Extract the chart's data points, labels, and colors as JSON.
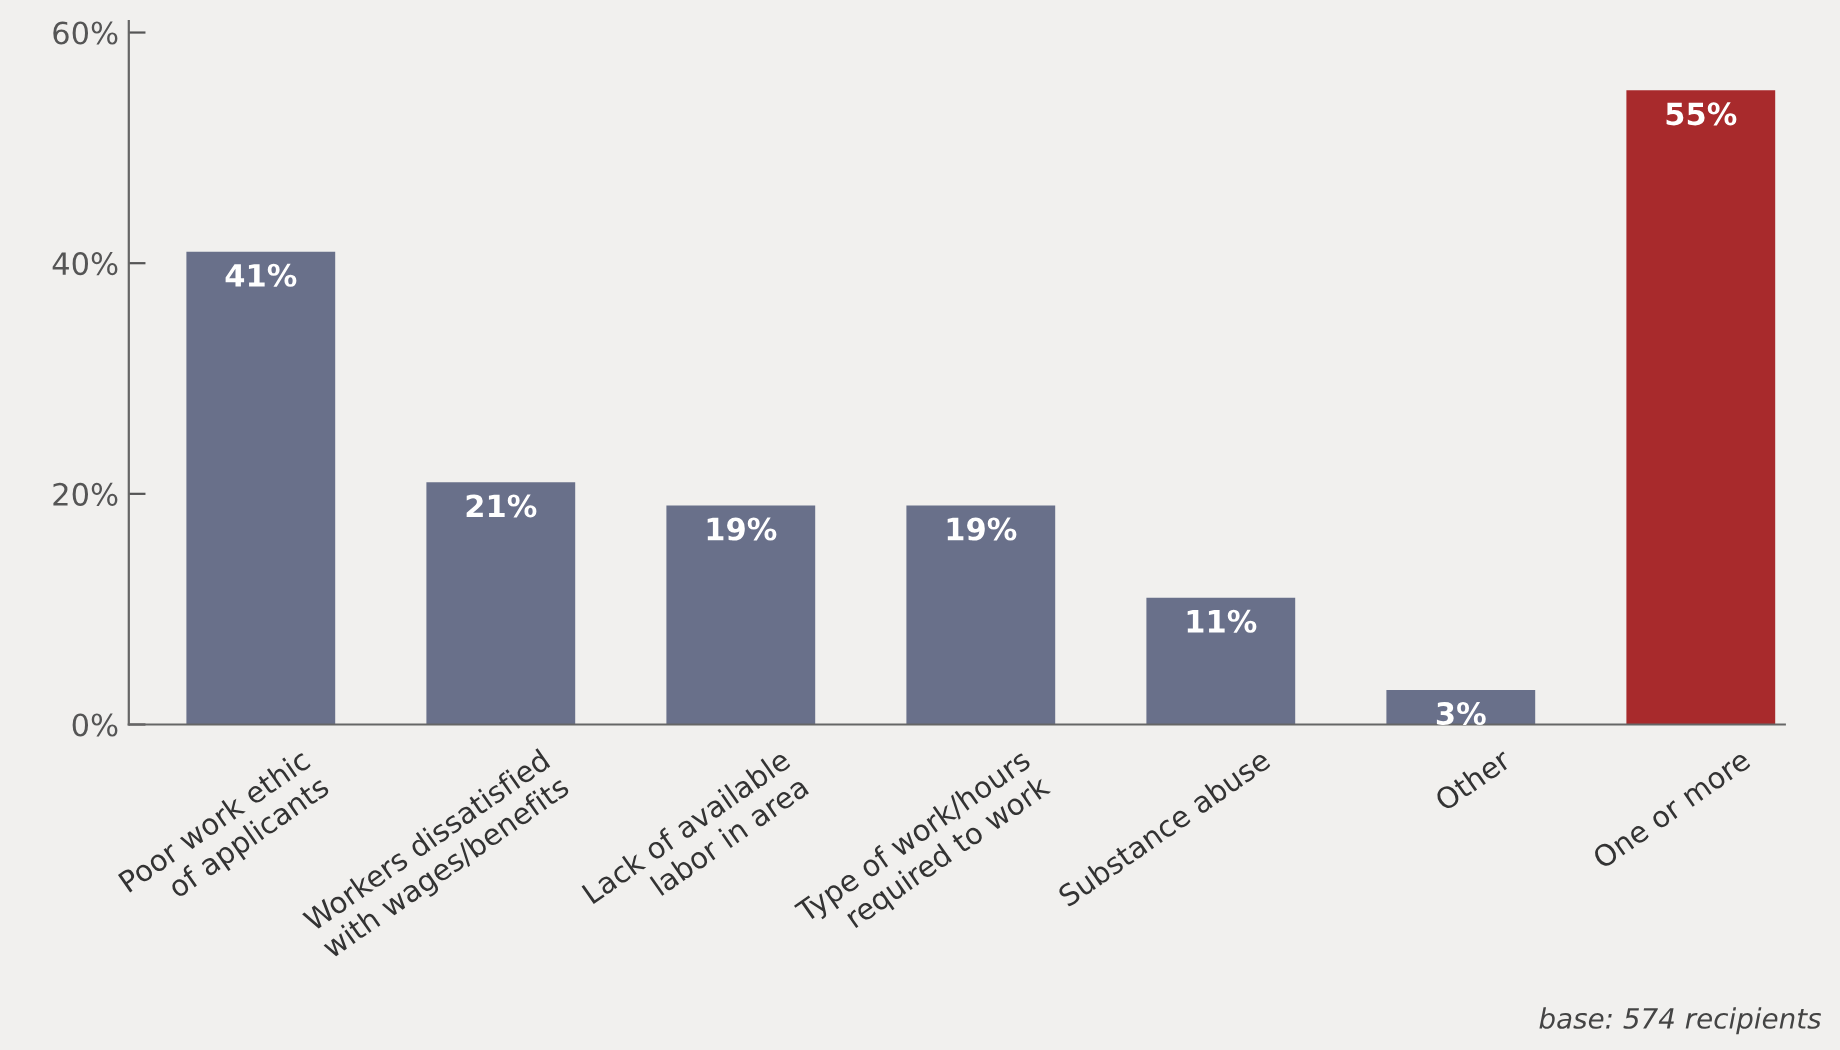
{
  "chart_data": {
    "type": "bar",
    "categories": [
      "Poor work ethic\nof applicants",
      "Workers dissatisfied\nwith wages/benefits",
      "Lack of available\nlabor in area",
      "Type of work/hours\nrequired to work",
      "Substance abuse",
      "Other",
      "One or more"
    ],
    "values": [
      41,
      21,
      19,
      19,
      11,
      3,
      55
    ],
    "colors": [
      "#69708a",
      "#69708a",
      "#69708a",
      "#69708a",
      "#69708a",
      "#69708a",
      "#a82a2c"
    ],
    "value_labels": [
      "41%",
      "21%",
      "19%",
      "19%",
      "11%",
      "3%",
      "55%"
    ],
    "ylim": [
      0,
      61
    ],
    "yticks": [
      {
        "value": 0,
        "label": "0%"
      },
      {
        "value": 20,
        "label": "20%"
      },
      {
        "value": 40,
        "label": "40%"
      },
      {
        "value": 60,
        "label": "60%"
      }
    ],
    "grid": false,
    "annotations": [
      "base: 574 recipients"
    ]
  }
}
